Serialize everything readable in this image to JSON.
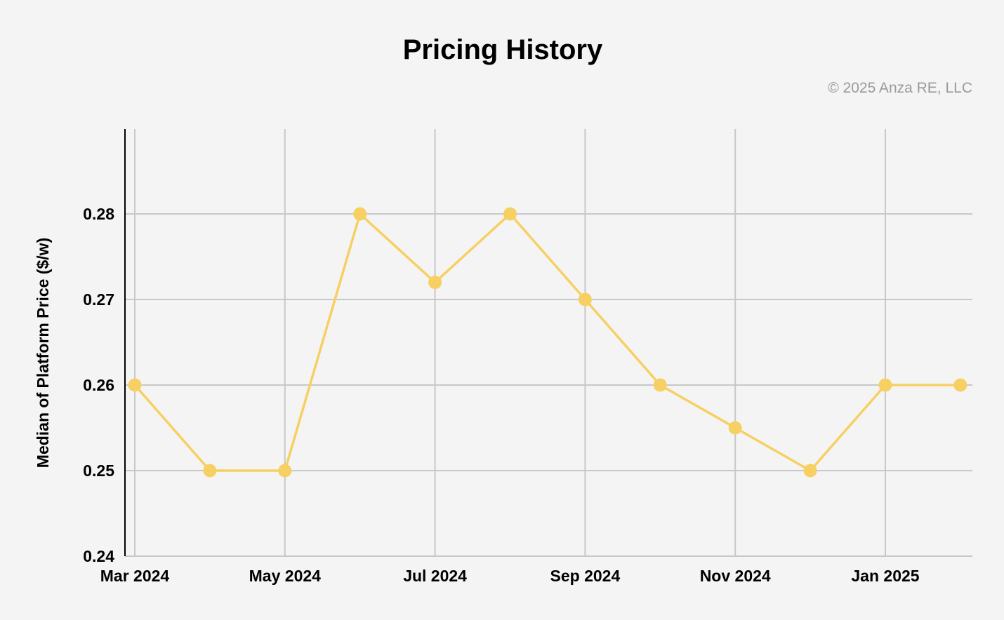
{
  "chart_data": {
    "type": "line",
    "title": "Pricing History",
    "copyright": "© 2025 Anza RE, LLC",
    "xlabel": "",
    "ylabel": "Median of Platform Price ($/w)",
    "x": [
      "Mar 2024",
      "Apr 2024",
      "May 2024",
      "Jun 2024",
      "Jul 2024",
      "Aug 2024",
      "Sep 2024",
      "Oct 2024",
      "Nov 2024",
      "Dec 2024",
      "Jan 2025",
      "Feb 2025"
    ],
    "x_tick_labels": [
      "Mar 2024",
      "May 2024",
      "Jul 2024",
      "Sep 2024",
      "Nov 2024",
      "Jan 2025"
    ],
    "series": [
      {
        "name": "Median of Platform Price ($/w)",
        "values": [
          0.26,
          0.25,
          0.25,
          0.28,
          0.272,
          0.28,
          0.27,
          0.26,
          0.255,
          0.25,
          0.26,
          0.26
        ]
      }
    ],
    "y_ticks": [
      "0.24",
      "0.25",
      "0.26",
      "0.27",
      "0.28"
    ],
    "ylim": [
      0.24,
      0.29
    ],
    "grid": true,
    "colors": {
      "line": "#f7d063",
      "marker": "#f7d063",
      "grid": "#c8c8c8",
      "background": "#f4f4f4"
    }
  }
}
